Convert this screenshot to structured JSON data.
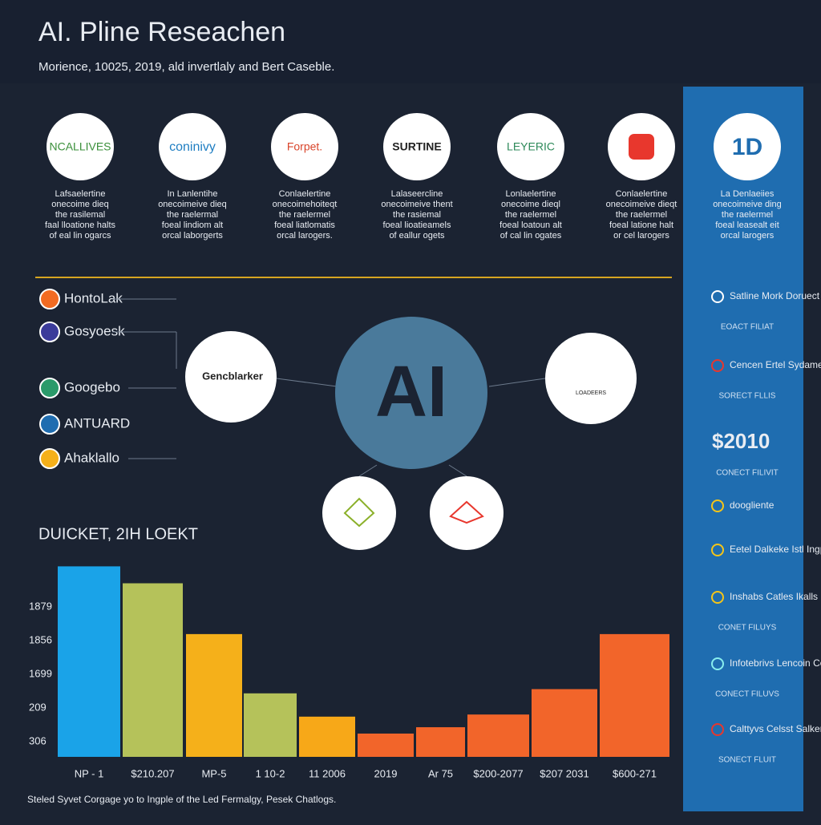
{
  "header": {
    "title": "AI. Pline Reseachen",
    "subtitle": "Morience, 10025, 2019, ald invertlaly and Bert Caseble."
  },
  "logos": [
    {
      "name": "NCALLIVES",
      "color": "#3a8f3a",
      "description": [
        "Lafsaelertine",
        "onecoime dieq",
        "the rasilemal",
        "faal lloatione halts",
        "of eal lin ogarcs"
      ]
    },
    {
      "name": "coninivy",
      "color": "#1f7ec2",
      "description": [
        "In Lanlentihe",
        "onecoimeive dieq",
        "the raelermal",
        "foeal lindiom alt",
        "orcal laborgerts"
      ]
    },
    {
      "name": "Forpet.",
      "color": "#d9452b",
      "description": [
        "Conlaelertine",
        "onecoimehoiteqt",
        "the raelermel",
        "foeal liatlomatis",
        "orcal larogers."
      ]
    },
    {
      "name": "SURTINE",
      "color": "#222222",
      "description": [
        "Lalaseercline",
        "onecoimeive thent",
        "the rasiemal",
        "foeal lioatieamels",
        "of eallur ogets"
      ]
    },
    {
      "name": "LEYERIC",
      "color": "#2e8a5a",
      "description": [
        "Lonlaelertine",
        "onecoime dieql",
        "the raelermel",
        "foeal loatoun alt",
        "of cal lin ogates"
      ]
    },
    {
      "name": "",
      "color": "#e8372d",
      "description": [
        "Conlaelertine",
        "onecoimeive dieqt",
        "the raelermel",
        "foeal latione halt",
        "or cel larogers"
      ]
    }
  ],
  "side_panel": {
    "badge": "1D",
    "description": [
      "La Denlaeiies",
      "onecoimeive ding",
      "the raelermel",
      "foeal leasealt eit",
      "orcal larogers"
    ],
    "items": [
      {
        "label": "Satline Mork Doruect",
        "note": "EOACT FILIAT"
      },
      {
        "label": "Cencen Ertel Sydamet",
        "note": "SORECT FLLIS"
      },
      {
        "label": "$2010",
        "note": "CONECT FILIVIT"
      },
      {
        "label": "doogliente",
        "note": ""
      },
      {
        "label": "Eetel Dalkeke Istl Ingperty",
        "note": ""
      },
      {
        "label": "Inshabs Catles Ikalls",
        "note": "CONET FILUYS"
      },
      {
        "label": "Infotebrivs Lencoin Ceats",
        "note": "CONECT FILUVS"
      },
      {
        "label": "Calttyvs Celsst Salkering",
        "note": "SONECT FLUIT"
      }
    ]
  },
  "partners": [
    "HontoLak",
    "Gosyoesk",
    "Googebo",
    "ANTUARD",
    "Ahaklallo"
  ],
  "network": {
    "center": "AI",
    "left_node": "Gencblarker",
    "right_node": "LOADEERS"
  },
  "chart_data": {
    "type": "bar",
    "title": "DUICKET, 2IH LOEKT",
    "categories": [
      "NP - 1",
      "$210.207",
      "MP-5",
      "1 10-2",
      "11 2006",
      "2019",
      "Ar 75",
      "$200-2077",
      "$207 2031",
      "$600-271"
    ],
    "values": [
      90,
      82,
      58,
      30,
      19,
      11,
      14,
      20,
      32,
      58
    ],
    "colors": [
      "#1aa3e8",
      "#b5c25a",
      "#f5b01a",
      "#b5c25a",
      "#f7a818",
      "#f2652a",
      "#f2652a",
      "#f2652a",
      "#f2652a",
      "#f2652a"
    ],
    "ylim": [
      0,
      100
    ],
    "y_labels": [
      "1879",
      "1856",
      "1699",
      "209",
      "306"
    ]
  },
  "footer": "Steled Syvet Corgage yo to Ingple of the Led Fermalgy, Pesek Chatlogs."
}
